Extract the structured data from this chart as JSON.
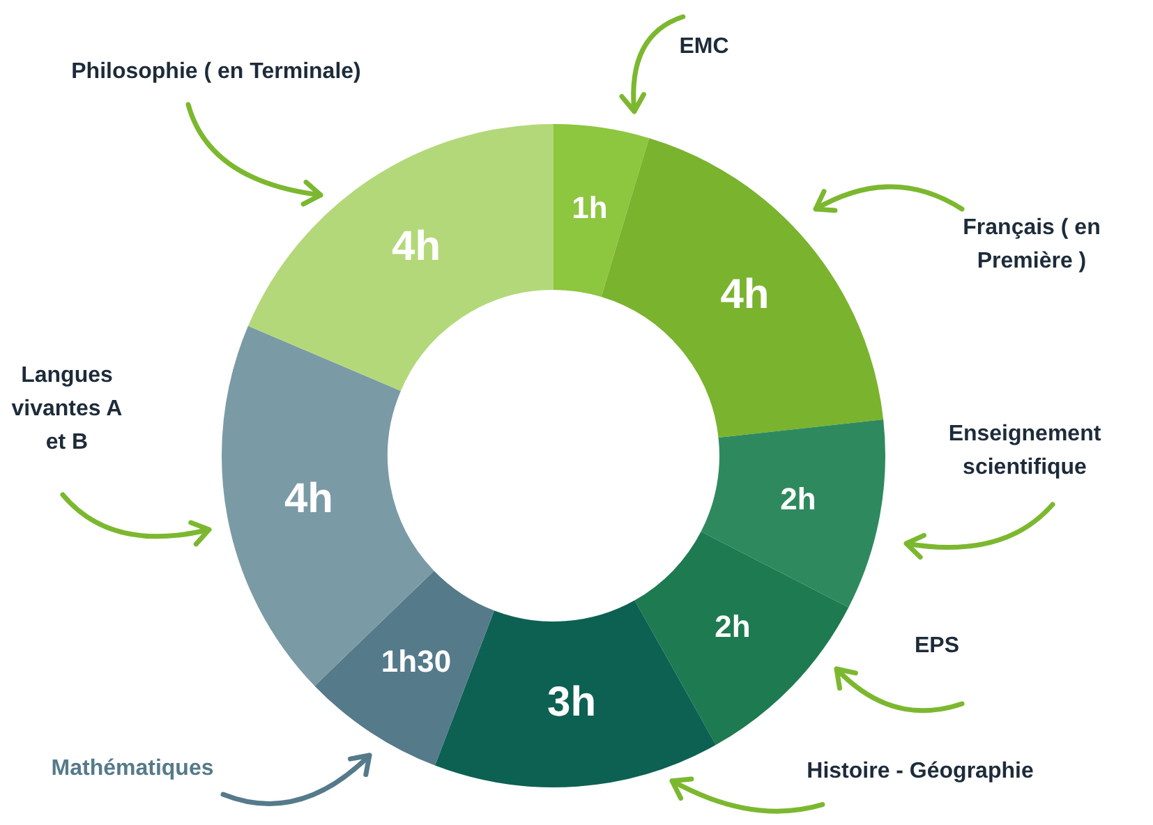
{
  "chart_data": {
    "type": "donut",
    "categories": [
      "EMC",
      "Français ( en Première )",
      "Enseignement scientifique",
      "EPS",
      "Histoire - Géographie",
      "Mathématiques",
      "Langues vivantes A et B",
      "Philosophie ( en Terminale)"
    ],
    "values": [
      1,
      4,
      2,
      2,
      3,
      1.5,
      4,
      4
    ],
    "colors": [
      "#8dc63f",
      "#7ab32e",
      "#2e8a5e",
      "#1e7a50",
      "#0d6152",
      "#557a8a",
      "#7a9aa6",
      "#b3d87a"
    ],
    "value_labels": [
      "1h",
      "4h",
      "2h",
      "2h",
      "3h",
      "1h30",
      "4h",
      "4h"
    ]
  }
}
